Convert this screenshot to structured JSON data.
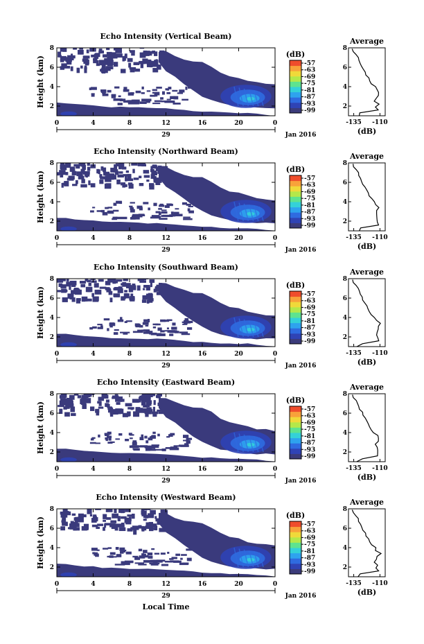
{
  "chart_data": {
    "type": "heatmap",
    "common": {
      "xlabel": "Local Time",
      "x_ticks": [
        "0",
        "4",
        "8",
        "12",
        "16",
        "20",
        "0"
      ],
      "date_label": "29",
      "month_label": "Jan 2016",
      "ylabel": "Height (km)",
      "y_ticks": [
        "2",
        "4",
        "6",
        "8"
      ],
      "ylim": [
        1,
        8
      ],
      "colorbar_unit": "(dB)",
      "colorbar_ticks": [
        "-57",
        "-63",
        "-69",
        "-75",
        "-81",
        "-87",
        "-93",
        "-99"
      ],
      "colorbar_colors": [
        "#3b3b7a",
        "#2f43b5",
        "#2f6be0",
        "#2ea3ee",
        "#34d1d8",
        "#5ee38f",
        "#b4e84a",
        "#f0d93a",
        "#f8a23a",
        "#ef4d2c"
      ],
      "avg_title": "Average",
      "avg_xlabel": "(dB)",
      "avg_x_ticks": [
        "-135",
        "-110"
      ],
      "avg_y_ticks": [
        "2",
        "4",
        "6",
        "8"
      ],
      "avg_profile": [
        [
          -131,
          1.0
        ],
        [
          -128,
          1.3
        ],
        [
          -111,
          1.6
        ],
        [
          -113,
          1.9
        ],
        [
          -112,
          2.2
        ],
        [
          -114,
          2.5
        ],
        [
          -113,
          2.8
        ],
        [
          -112,
          3.1
        ],
        [
          -110,
          3.4
        ],
        [
          -113,
          3.7
        ],
        [
          -115,
          4.0
        ],
        [
          -118,
          4.3
        ],
        [
          -120,
          4.6
        ],
        [
          -121,
          4.9
        ],
        [
          -123,
          5.2
        ],
        [
          -124,
          5.5
        ],
        [
          -126,
          5.8
        ],
        [
          -127,
          6.1
        ],
        [
          -129,
          6.4
        ],
        [
          -130,
          6.7
        ],
        [
          -131,
          7.0
        ],
        [
          -133,
          7.3
        ],
        [
          -135,
          7.6
        ],
        [
          -136,
          7.9
        ]
      ]
    },
    "panels": [
      {
        "title": "Echo Intensity (Vertical Beam)"
      },
      {
        "title": "Echo Intensity (Northward Beam)"
      },
      {
        "title": "Echo Intensity (Southward Beam)"
      },
      {
        "title": "Echo Intensity (Eastward Beam)"
      },
      {
        "title": "Echo Intensity (Westward Beam)"
      }
    ]
  }
}
